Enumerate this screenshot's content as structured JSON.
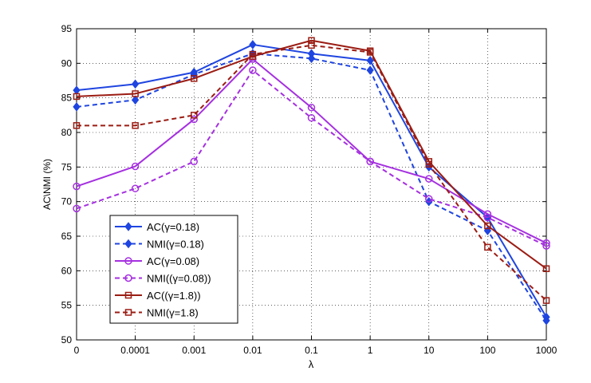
{
  "chart_data": {
    "type": "line",
    "title": "",
    "xlabel": "λ",
    "ylabel": "AC\\NMI (%)",
    "categories": [
      "0",
      "0.0001",
      "0.001",
      "0.01",
      "0.1",
      "1",
      "10",
      "100",
      "1000"
    ],
    "ylim": [
      50,
      95
    ],
    "yticks": [
      50,
      55,
      60,
      65,
      70,
      75,
      80,
      85,
      90,
      95
    ],
    "grid": true,
    "legend_position": "lower-left",
    "series": [
      {
        "name": "AC(γ=0.18)",
        "color": "#1f45e0",
        "dash": false,
        "marker": "diamond",
        "values": [
          86.1,
          87.0,
          88.7,
          92.7,
          91.4,
          90.4,
          75.0,
          67.7,
          53.3
        ]
      },
      {
        "name": "NMI(γ=0.18)",
        "color": "#1f45e0",
        "dash": true,
        "marker": "diamond",
        "values": [
          83.7,
          84.7,
          88.4,
          91.4,
          90.7,
          89.0,
          70.0,
          65.8,
          52.8
        ]
      },
      {
        "name": "AC(γ=0.08)",
        "color": "#a530e0",
        "dash": false,
        "marker": "circle",
        "values": [
          72.2,
          75.1,
          81.9,
          90.6,
          83.6,
          75.8,
          73.3,
          68.2,
          64.0
        ]
      },
      {
        "name": "NMI((γ=0.08))",
        "color": "#a530e0",
        "dash": true,
        "marker": "circle",
        "values": [
          69.0,
          71.9,
          75.8,
          89.0,
          82.1,
          75.8,
          70.4,
          67.7,
          63.6
        ]
      },
      {
        "name": "AC((γ=1.8))",
        "color": "#9b1c13",
        "dash": false,
        "marker": "square",
        "values": [
          85.2,
          85.6,
          87.8,
          91.0,
          93.3,
          91.8,
          75.8,
          66.5,
          60.3
        ]
      },
      {
        "name": "NMI(γ=1.8)",
        "color": "#9b1c13",
        "dash": true,
        "marker": "square",
        "values": [
          81.0,
          81.0,
          82.5,
          91.3,
          92.6,
          91.6,
          75.4,
          63.4,
          55.7
        ]
      }
    ]
  }
}
